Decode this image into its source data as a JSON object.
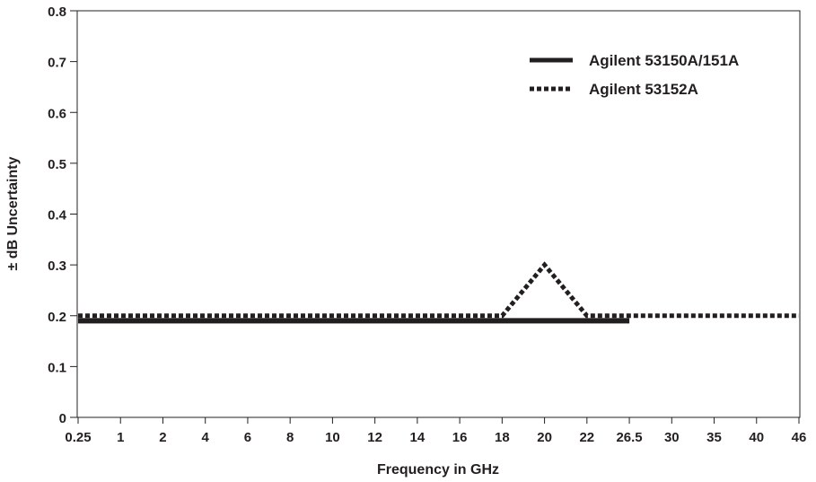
{
  "chart_data": {
    "type": "line",
    "title": "",
    "xlabel": "Frequency in GHz",
    "ylabel": "± dB Uncertainty",
    "categories": [
      "0.25",
      "1",
      "2",
      "4",
      "6",
      "8",
      "10",
      "12",
      "14",
      "16",
      "18",
      "20",
      "22",
      "26.5",
      "30",
      "35",
      "40",
      "46"
    ],
    "ylim": [
      0,
      0.8
    ],
    "yticks": [
      "0",
      "0.1",
      "0.2",
      "0.3",
      "0.4",
      "0.5",
      "0.6",
      "0.7",
      "0.8"
    ],
    "grid": false,
    "legend_position": "top-right",
    "series": [
      {
        "name": "Agilent 53150A/151A",
        "style": "solid",
        "color": "#231f20",
        "x": [
          "0.25",
          "26.5"
        ],
        "values": [
          0.19,
          0.19
        ]
      },
      {
        "name": "Agilent 53152A",
        "style": "dotted",
        "color": "#231f20",
        "x": [
          "0.25",
          "18",
          "20",
          "22",
          "46"
        ],
        "values": [
          0.2,
          0.2,
          0.3,
          0.2,
          0.2
        ]
      }
    ]
  }
}
